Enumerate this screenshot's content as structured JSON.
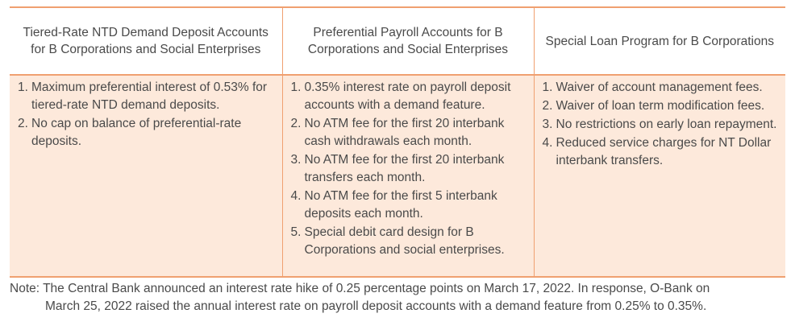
{
  "columns": [
    {
      "header": "Tiered-Rate NTD Demand Deposit Accounts for B Corporations and Social Enterprises",
      "items": [
        "Maximum preferential interest of 0.53% for tiered-rate NTD demand deposits.",
        "No cap on balance of preferential-rate deposits."
      ]
    },
    {
      "header": "Preferential Payroll Accounts for B Corporations and Social Enterprises",
      "items": [
        "0.35% interest rate on payroll deposit accounts with a demand feature.",
        "No ATM fee for the first 20 interbank cash withdrawals each month.",
        "No ATM fee for the first 20 interbank transfers each month.",
        "No ATM fee for the first 5 interbank deposits each month.",
        "Special debit card design for B Corporations and social enterprises."
      ]
    },
    {
      "header": "Special Loan Program for B Corporations",
      "items": [
        "Waiver of account management fees.",
        "Waiver of loan term modification fees.",
        "No restrictions on early loan repayment.",
        "Reduced service charges for NT Dollar interbank transfers."
      ]
    }
  ],
  "note": {
    "line1": "Note: The Central Bank announced an interest rate hike of 0.25 percentage points on March 17, 2022. In response, O-Bank on",
    "line2": "March 25, 2022 raised the annual interest rate on payroll deposit accounts with a demand feature from 0.25% to 0.35%."
  },
  "colors": {
    "accent_border": "#f0a070",
    "cell_fill": "#fde9db",
    "text": "#4a4a4a"
  }
}
